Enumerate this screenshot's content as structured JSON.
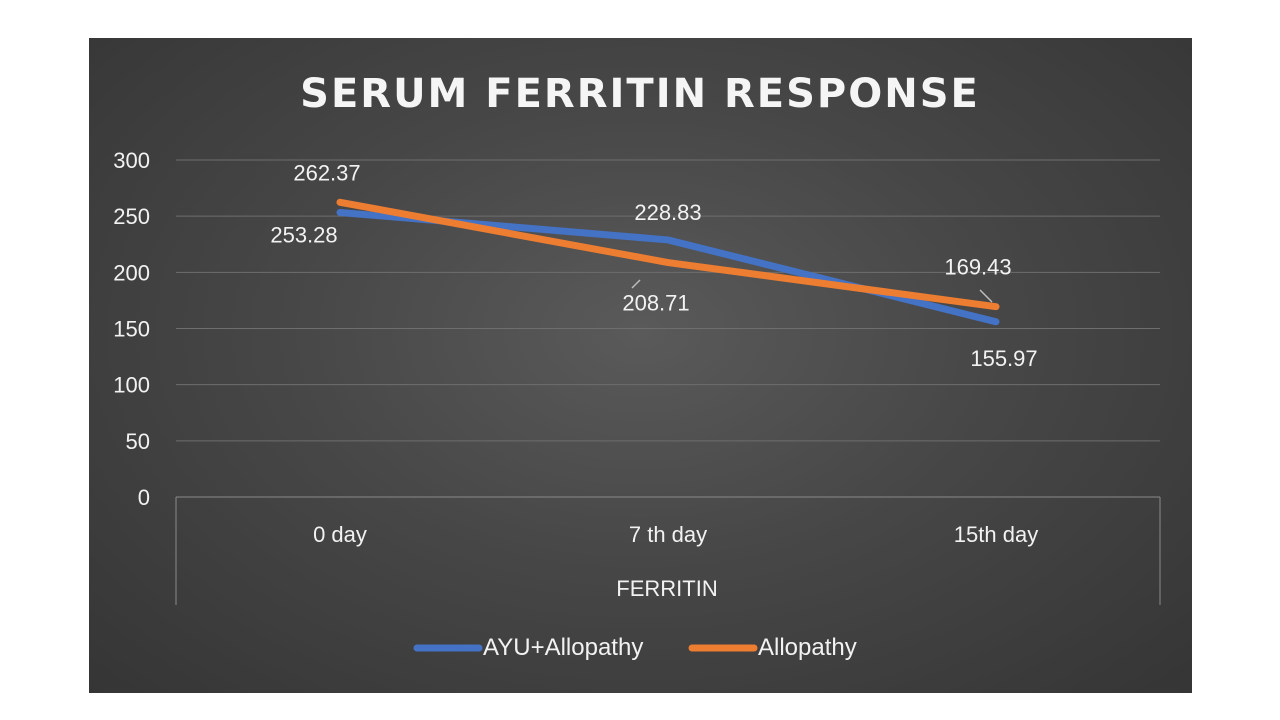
{
  "chart_data": {
    "type": "line",
    "title": "SERUM FERRITIN RESPONSE",
    "xlabel": "FERRITIN",
    "ylabel": "",
    "categories": [
      "0 day",
      "7 th day",
      "15th day"
    ],
    "y_ticks": [
      "0",
      "50",
      "100",
      "150",
      "200",
      "250",
      "300"
    ],
    "ylim": [
      0,
      300
    ],
    "grid": "horizontal",
    "legend_position": "bottom",
    "series": [
      {
        "name": "AYU+Allopathy",
        "values": [
          253.28,
          228.83,
          155.97
        ],
        "labels": [
          "253.28",
          "228.83",
          "155.97"
        ],
        "color": "#4472c4"
      },
      {
        "name": "Allopathy",
        "values": [
          262.37,
          208.71,
          169.43
        ],
        "labels": [
          "262.37",
          "208.71",
          "169.43"
        ],
        "color": "#ed7d31"
      }
    ]
  }
}
